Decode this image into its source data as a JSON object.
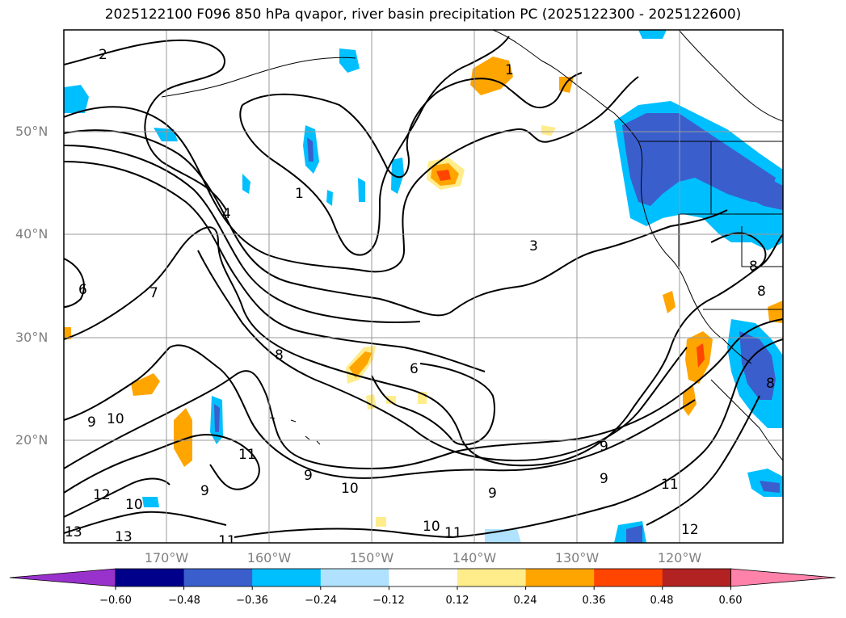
{
  "title": "2025122100 F096 850 hPa qvapor, river basin precipitation PC (2025122300 - 2025122600)",
  "lat_labels": [
    "50°N",
    "40°N",
    "30°N",
    "20°N"
  ],
  "lon_labels": [
    "170°W",
    "160°W",
    "150°W",
    "140°W",
    "130°W",
    "120°W"
  ],
  "contour_labels": [
    "2",
    "1",
    "1",
    "4",
    "3",
    "6",
    "7",
    "8",
    "6",
    "9",
    "10",
    "11",
    "9",
    "9",
    "10",
    "9",
    "9",
    "11",
    "12",
    "10",
    "13",
    "13",
    "11",
    "9",
    "10",
    "11",
    "12",
    "8",
    "8",
    "8"
  ],
  "colorbar": {
    "ticks": [
      "−0.60",
      "−0.48",
      "−0.36",
      "−0.24",
      "−0.12",
      "0.12",
      "0.24",
      "0.36",
      "0.48",
      "0.60"
    ],
    "colors": [
      "#9932cc",
      "#00008b",
      "#3a5fcd",
      "#00bfff",
      "#b0e2ff",
      "#ffffff",
      "#ffec8b",
      "#ffa500",
      "#ff4500",
      "#b22222",
      "#ff82ab"
    ]
  }
}
